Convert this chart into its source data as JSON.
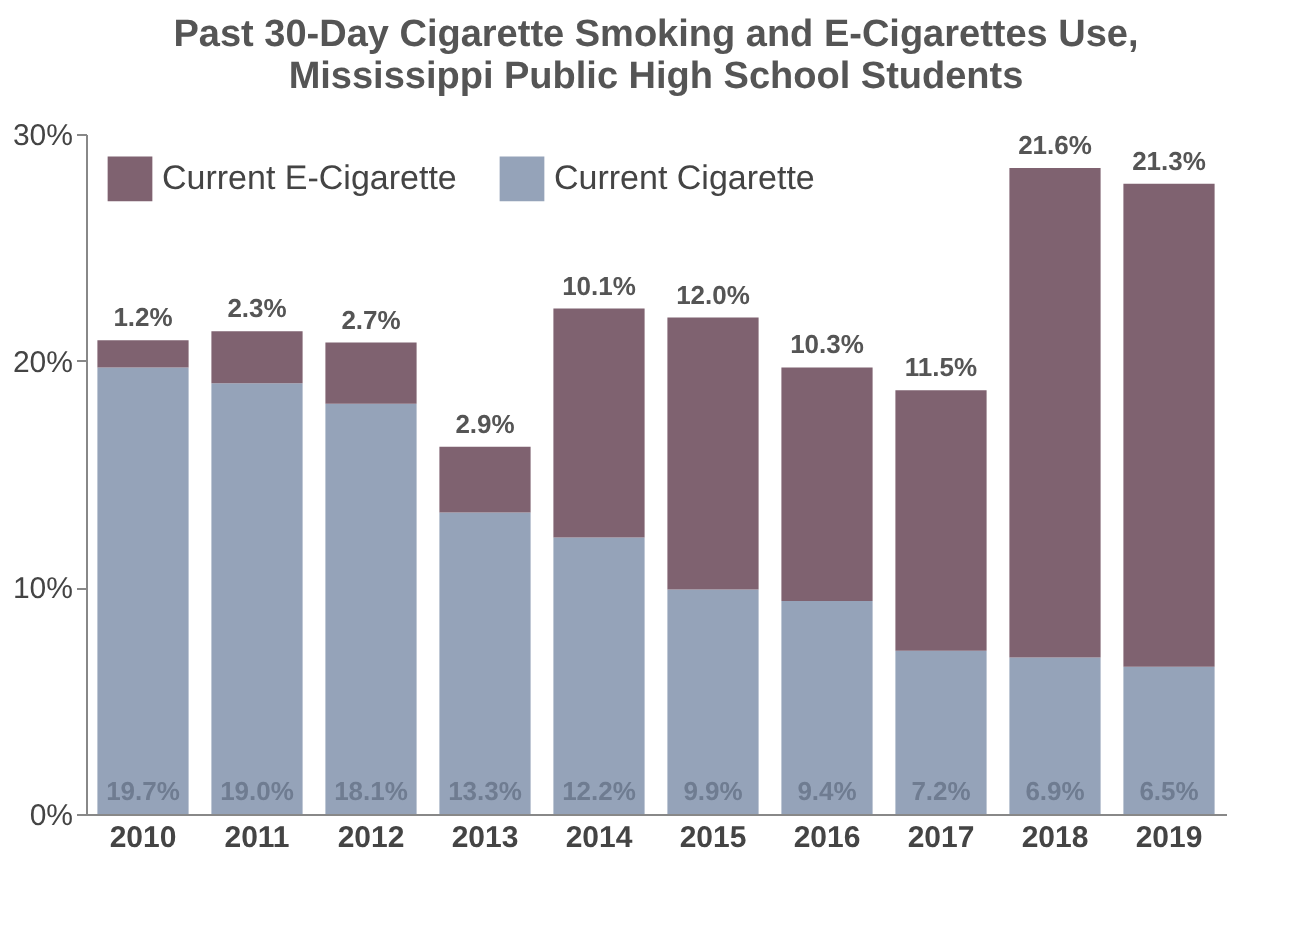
{
  "chart_data": {
    "type": "bar",
    "stacked": true,
    "title": "Past 30-Day Cigarette Smoking and E-Cigarettes Use, Mississippi Public High School Students",
    "categories": [
      "2010",
      "2011",
      "2012",
      "2013",
      "2014",
      "2015",
      "2016",
      "2017",
      "2018",
      "2019"
    ],
    "series": [
      {
        "name": "Current Cigarette",
        "color": "#95a3b9",
        "values": [
          19.7,
          19.0,
          18.1,
          13.3,
          12.2,
          9.9,
          9.4,
          7.2,
          6.9,
          6.5
        ],
        "value_labels": [
          "19.7%",
          "19.0%",
          "18.1%",
          "13.3%",
          "12.2%",
          "9.9%",
          "9.4%",
          "7.2%",
          "6.9%",
          "6.5%"
        ]
      },
      {
        "name": "Current E-Cigarette",
        "color": "#7f6270",
        "values": [
          1.2,
          2.3,
          2.7,
          2.9,
          10.1,
          12.0,
          10.3,
          11.5,
          21.6,
          21.3
        ],
        "value_labels": [
          "1.2%",
          "2.3%",
          "2.7%",
          "2.9%",
          "10.1%",
          "12.0%",
          "10.3%",
          "11.5%",
          "21.6%",
          "21.3%"
        ]
      }
    ],
    "ylim": [
      0,
      30
    ],
    "yticks": [
      {
        "value": 0,
        "label": "0%"
      },
      {
        "value": 10,
        "label": "10%"
      },
      {
        "value": 20,
        "label": "20%"
      },
      {
        "value": 30,
        "label": "30%"
      }
    ],
    "grid": false,
    "legend": "top left"
  }
}
